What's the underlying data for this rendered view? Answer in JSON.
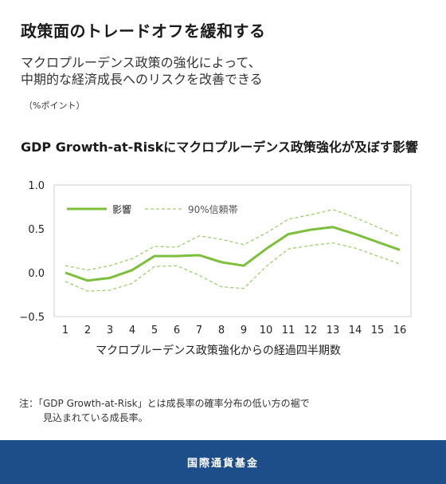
{
  "header": {
    "headline": "政策面のトレードオフを緩和する",
    "subtitle_line1": "マクロプルーデンス政策の強化によって、",
    "subtitle_line2": "中期的な経済成長へのリスクを改善できる",
    "unit": "（%ポイント）"
  },
  "chart_data": {
    "type": "line",
    "title": "GDP Growth-at-Riskにマクロプルーデンス政策強化が及ぼす影響",
    "xlabel": "マクロプルーデンス政策強化からの経過四半期数",
    "ylabel": "",
    "x": [
      1,
      2,
      3,
      4,
      5,
      6,
      7,
      8,
      9,
      10,
      11,
      12,
      13,
      14,
      15,
      16
    ],
    "ylim": [
      -0.5,
      1.0
    ],
    "yticks": [
      "1.0",
      "0.5",
      "0.0",
      "−0.5"
    ],
    "xticks": [
      "1",
      "2",
      "3",
      "4",
      "5",
      "6",
      "7",
      "8",
      "9",
      "10",
      "11",
      "12",
      "13",
      "14",
      "15",
      "16"
    ],
    "grid": false,
    "legend_position": "top-left",
    "series": [
      {
        "name": "影響",
        "style": "solid",
        "color": "#7cbf3a",
        "values": [
          0.0,
          -0.09,
          -0.06,
          0.03,
          0.19,
          0.19,
          0.2,
          0.12,
          0.08,
          0.27,
          0.44,
          0.49,
          0.52,
          0.44,
          0.35,
          0.26
        ]
      },
      {
        "name": "90%信頼帯",
        "style": "dashed",
        "color": "#9ed06a",
        "values": [
          0.08,
          0.03,
          0.08,
          0.16,
          0.3,
          0.29,
          0.42,
          0.38,
          0.32,
          0.45,
          0.61,
          0.66,
          0.72,
          0.63,
          0.52,
          0.41
        ]
      },
      {
        "name": "",
        "style": "dashed",
        "color": "#9ed06a",
        "values": [
          -0.1,
          -0.21,
          -0.2,
          -0.12,
          0.07,
          0.08,
          -0.03,
          -0.16,
          -0.18,
          0.07,
          0.27,
          0.31,
          0.34,
          0.28,
          0.19,
          0.1
        ]
      }
    ]
  },
  "note": {
    "line1": "注：「GDP Growth-at-Risk」とは成長率の確率分布の低い方の裾で",
    "line2": "見込まれている成長率。"
  },
  "footer": {
    "label": "国際通貨基金",
    "bg_color": "#1d4e89"
  },
  "colors": {
    "axis_frame": "#cfcfcf"
  }
}
